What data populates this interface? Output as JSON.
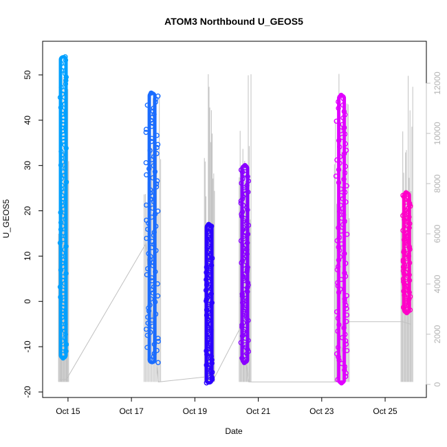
{
  "chart_data": {
    "type": "scatter",
    "title": "ATOM3 Northbound U_GEOS5",
    "xlabel": "Date",
    "ylabel": "U_GEOS5",
    "x_ticks": [
      "Oct 15",
      "Oct 17",
      "Oct 19",
      "Oct 21",
      "Oct 23",
      "Oct 25"
    ],
    "x_tick_days": [
      15,
      17,
      19,
      21,
      23,
      25
    ],
    "xlim_days": [
      14.2,
      26.3
    ],
    "ylim": [
      -20,
      55
    ],
    "y_ticks": [
      -20,
      -10,
      0,
      10,
      20,
      30,
      40,
      50
    ],
    "y2lim": [
      0,
      12500
    ],
    "y2_ticks": [
      0,
      2000,
      4000,
      6000,
      8000,
      10000,
      12000
    ],
    "grid": false,
    "legend": "none",
    "secondary_color": "#c0c0c0",
    "flights": [
      {
        "start_day": 14.75,
        "end_day": 14.95,
        "ymin": -12.5,
        "ymax": 54,
        "color": "#00a0ff"
      },
      {
        "start_day": 17.45,
        "end_day": 17.85,
        "ymin": -13.5,
        "ymax": 46,
        "color": "#1a6cff"
      },
      {
        "start_day": 19.35,
        "end_day": 19.55,
        "ymin": -18,
        "ymax": 17,
        "color": "#2b00ff"
      },
      {
        "start_day": 20.45,
        "end_day": 20.7,
        "ymin": -13.5,
        "ymax": 30,
        "color": "#8a00ff"
      },
      {
        "start_day": 23.45,
        "end_day": 23.8,
        "ymin": -18,
        "ymax": 45.5,
        "color": "#e000ff"
      },
      {
        "start_day": 25.55,
        "end_day": 25.8,
        "ymin": -2.5,
        "ymax": 24,
        "color": "#ff00c8"
      }
    ],
    "altitude_baseline": [
      [
        14.75,
        200
      ],
      [
        14.95,
        200
      ],
      [
        17.45,
        5600
      ],
      [
        17.85,
        100
      ],
      [
        19.35,
        300
      ],
      [
        19.55,
        100
      ],
      [
        20.45,
        2300
      ],
      [
        20.7,
        100
      ],
      [
        23.45,
        100
      ],
      [
        23.8,
        2500
      ],
      [
        25.55,
        2500
      ],
      [
        25.8,
        2400
      ]
    ]
  }
}
